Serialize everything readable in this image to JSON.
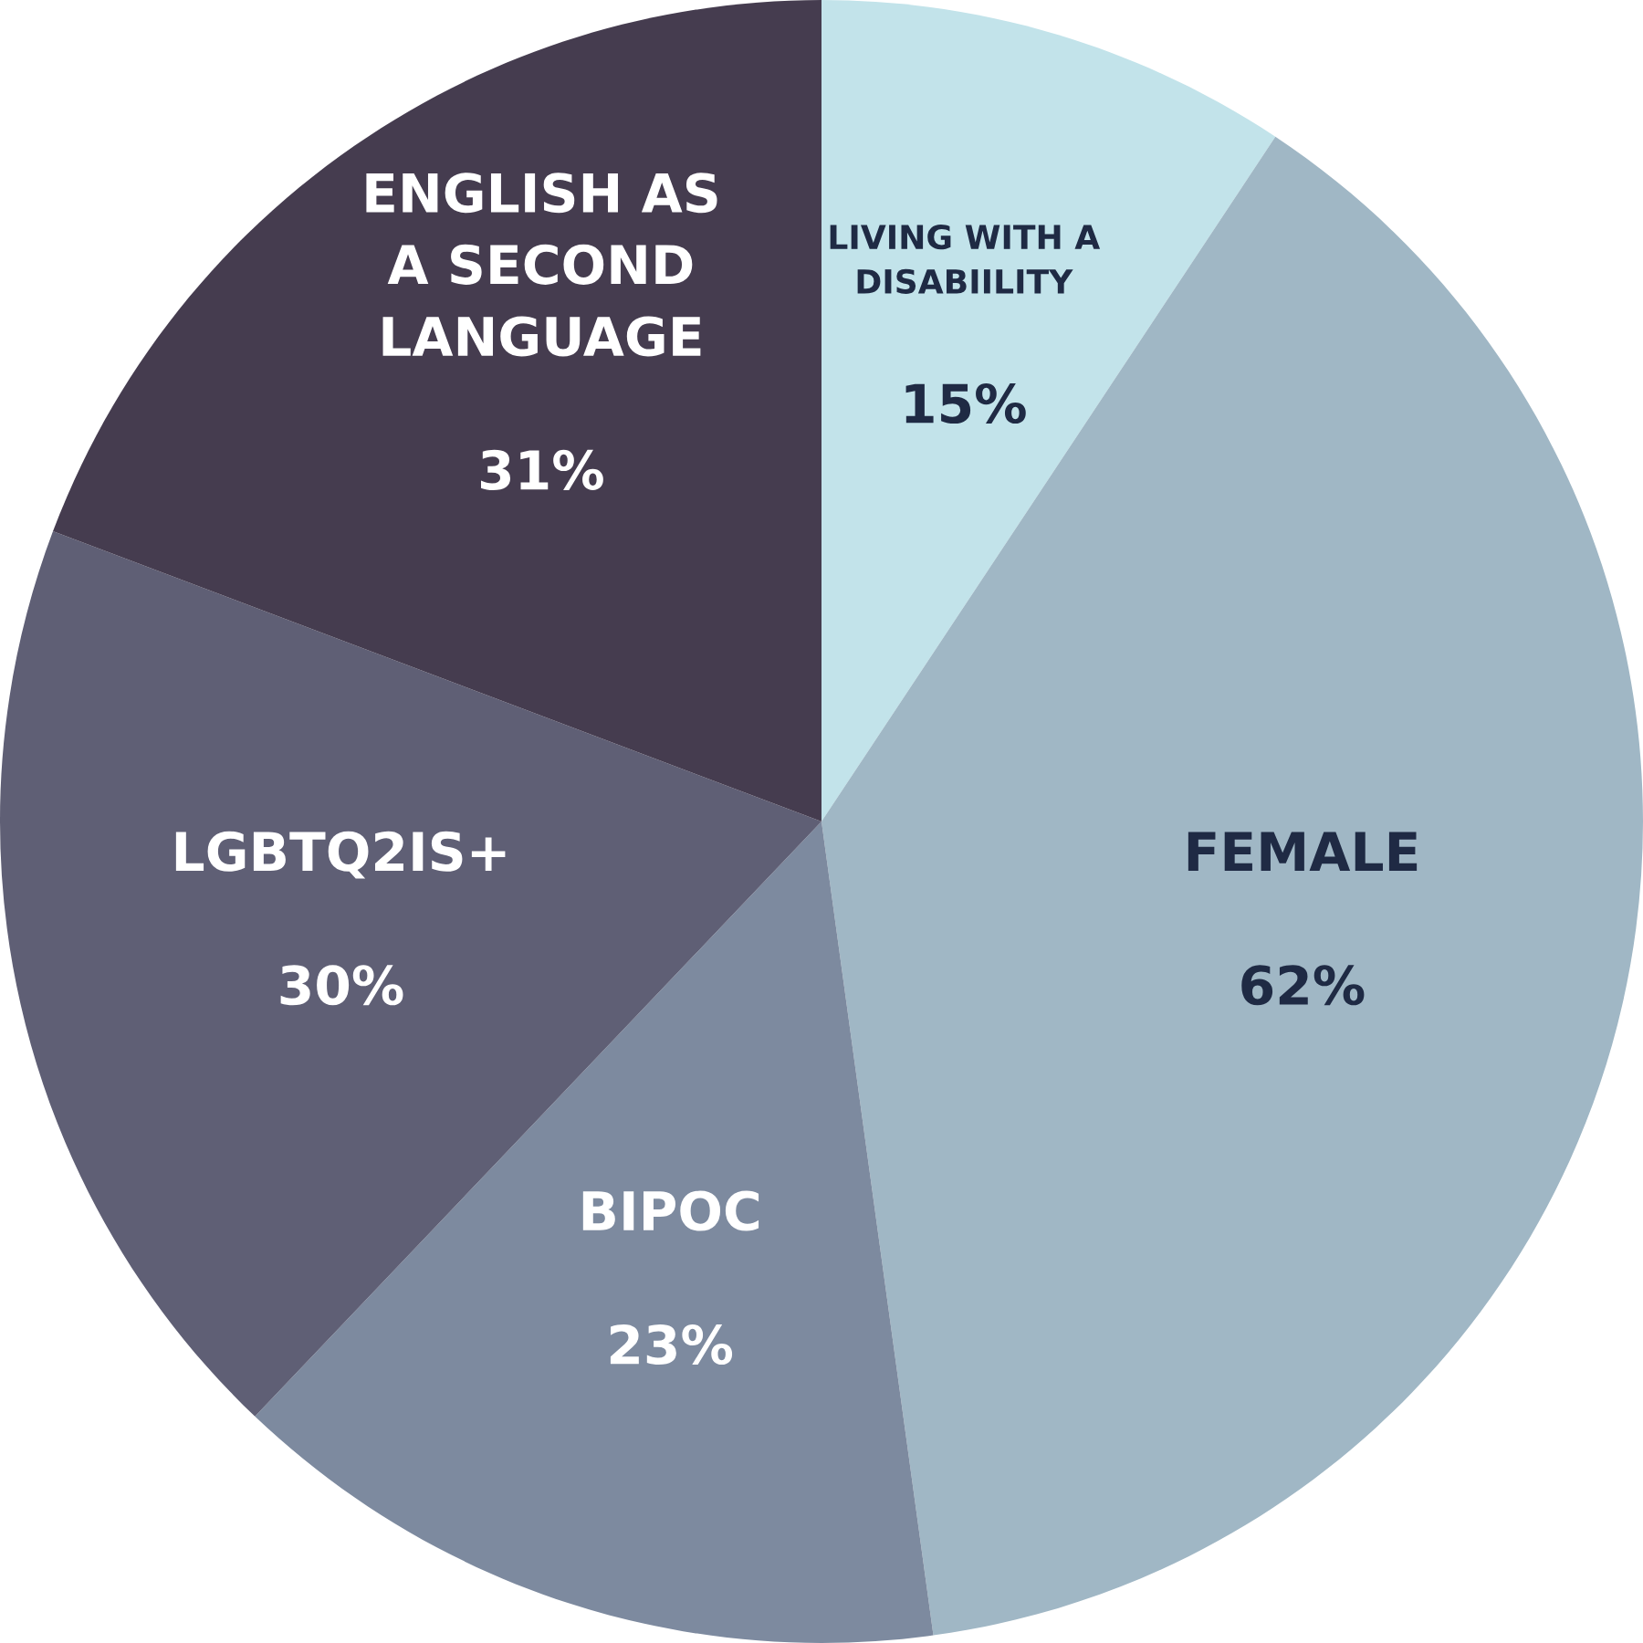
{
  "chart_data": {
    "type": "pie",
    "categories": [
      "LIVING WITH A\nDISABIILITY",
      "FEMALE",
      "BIPOC",
      "LGBTQ2IS+",
      "ENGLISH AS\nA SECOND\nLANGUAGE"
    ],
    "values": [
      15,
      62,
      23,
      30,
      31
    ],
    "value_labels": [
      "15%",
      "62%",
      "23%",
      "30%",
      "31%"
    ],
    "colors": [
      "#c2e3ea",
      "#a0b7c5",
      "#7d8a9f",
      "#5f5f75",
      "#453c4f"
    ]
  }
}
